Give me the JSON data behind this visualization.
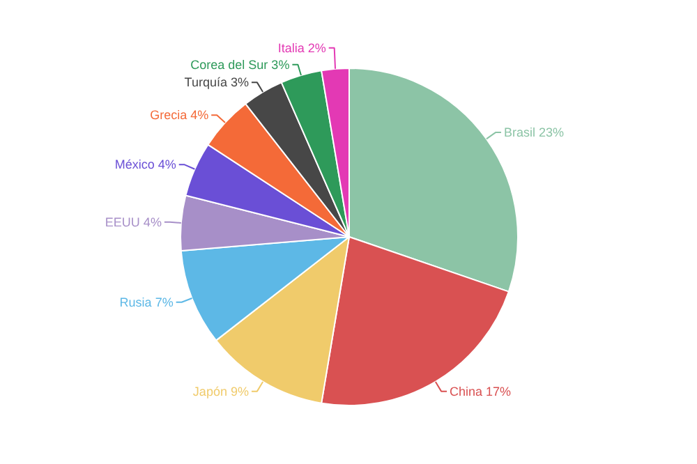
{
  "chart_data": {
    "type": "pie",
    "categories": [
      "Brasil",
      "China",
      "Japón",
      "Rusia",
      "EEUU",
      "México",
      "Grecia",
      "Turquía",
      "Corea del Sur",
      "Italia"
    ],
    "values": [
      23,
      17,
      9,
      7,
      4,
      4,
      4,
      3,
      3,
      2
    ],
    "value_labels": [
      "23%",
      "17%",
      "9%",
      "7%",
      "4%",
      "4%",
      "4%",
      "3%",
      "3%",
      "2%"
    ],
    "colors": [
      "#8cc4a6",
      "#d95152",
      "#f0cb6b",
      "#5db8e6",
      "#a78fc8",
      "#6a4fd6",
      "#f46a38",
      "#474747",
      "#2e9a5a",
      "#e339b4"
    ]
  }
}
